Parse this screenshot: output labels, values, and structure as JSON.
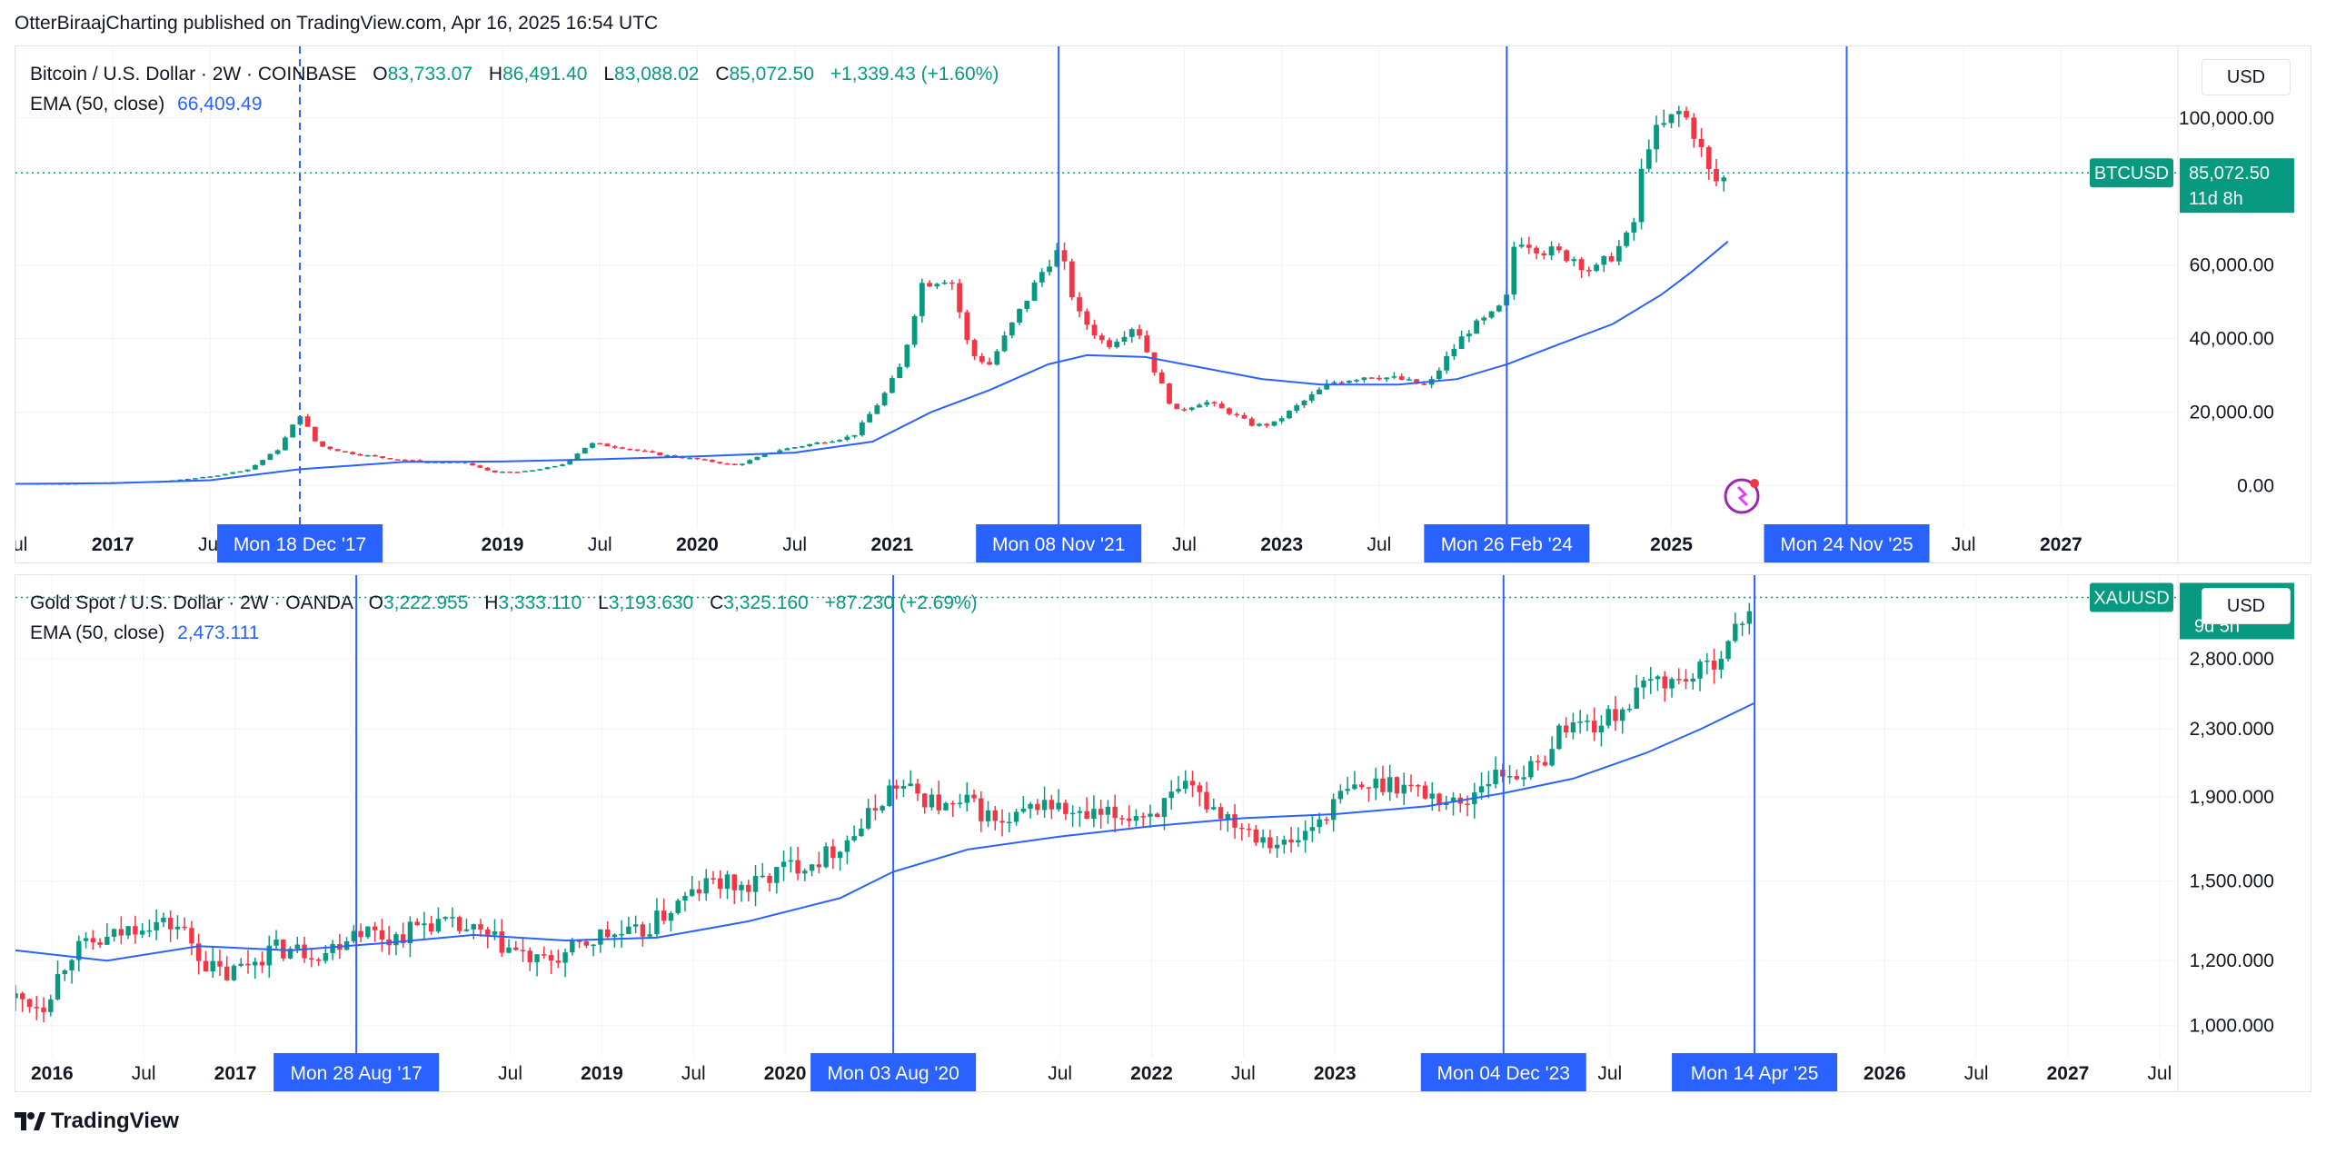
{
  "header": {
    "text": "OtterBiraajCharting published on TradingView.com, Apr 16, 2025 16:54 UTC"
  },
  "footer": {
    "brand": "TradingView"
  },
  "charts": {
    "btc": {
      "legend": {
        "symbol": "Bitcoin / U.S. Dollar · 2W · COINBASE",
        "o_key": "O",
        "o": "83,733.07",
        "h_key": "H",
        "h": "86,491.40",
        "l_key": "L",
        "l": "83,088.02",
        "c_key": "C",
        "c": "85,072.50",
        "change": "+1,339.43 (+1.60%)",
        "ema_label": "EMA (50, close)",
        "ema_value": "66,409.49"
      },
      "currency": "USD",
      "price_tag": "85,072.50",
      "countdown": "11d 8h",
      "ticker": "BTCUSD"
    },
    "gold": {
      "legend": {
        "symbol": "Gold Spot / U.S. Dollar · 2W · OANDA",
        "o_key": "O",
        "o": "3,222.955",
        "h_key": "H",
        "h": "3,333.110",
        "l_key": "L",
        "l": "3,193.630",
        "c_key": "C",
        "c": "3,325.160",
        "change": "+87.230 (+2.69%)",
        "ema_label": "EMA (50, close)",
        "ema_value": "2,473.111"
      },
      "currency": "USD",
      "countdown": "9d 5h",
      "ticker": "XAUUSD"
    }
  },
  "colors": {
    "up": "#089981",
    "down": "#f23645",
    "ema": "#2962ff",
    "marker": "#2962ff",
    "grid": "#f0f3fa",
    "badge": "#089981"
  },
  "chart_data": [
    {
      "type": "candlestick",
      "title": "Bitcoin / U.S. Dollar · 2W · COINBASE",
      "ylabel": "USD",
      "y_ticks": [
        "0.00",
        "20,000.00",
        "40,000.00",
        "60,000.00",
        "100,000.00"
      ],
      "y_tick_values": [
        0,
        20000,
        40000,
        60000,
        100000
      ],
      "ylim": [
        -9000,
        117000
      ],
      "x_ticks": [
        "Jul",
        "2017",
        "Jul",
        "2019",
        "Jul",
        "2020",
        "Jul",
        "2021",
        "Jul",
        "2023",
        "Jul",
        "2025",
        "Jul",
        "2027"
      ],
      "x_tick_dates": [
        2016.5,
        2017.0,
        2017.5,
        2019.0,
        2019.5,
        2020.0,
        2020.5,
        2021.0,
        2022.5,
        2023.0,
        2023.5,
        2025.0,
        2026.5,
        2027.0
      ],
      "xlim": [
        2016.5,
        2027.6
      ],
      "vertical_markers": [
        {
          "label": "Mon 18 Dec '17",
          "date": 2017.96,
          "style": "dashed"
        },
        {
          "label": "Mon 08 Nov '21",
          "date": 2021.855,
          "style": "solid"
        },
        {
          "label": "Mon 26 Feb '24",
          "date": 2024.155,
          "style": "solid"
        },
        {
          "label": "Mon 24 Nov '25",
          "date": 2025.9,
          "style": "solid"
        }
      ],
      "series": [
        {
          "name": "Bitcoin / U.S. Dollar",
          "points": [
            [
              2016.5,
              650
            ],
            [
              2016.75,
              620
            ],
            [
              2017.0,
              960
            ],
            [
              2017.25,
              1200
            ],
            [
              2017.5,
              2500
            ],
            [
              2017.7,
              4500
            ],
            [
              2017.85,
              10000
            ],
            [
              2017.96,
              19500
            ],
            [
              2018.05,
              11000
            ],
            [
              2018.2,
              9000
            ],
            [
              2018.4,
              7500
            ],
            [
              2018.6,
              6500
            ],
            [
              2018.8,
              6300
            ],
            [
              2018.95,
              3700
            ],
            [
              2019.1,
              3800
            ],
            [
              2019.3,
              5500
            ],
            [
              2019.45,
              11500
            ],
            [
              2019.6,
              10500
            ],
            [
              2019.8,
              8500
            ],
            [
              2020.0,
              7200
            ],
            [
              2020.2,
              5500
            ],
            [
              2020.4,
              9500
            ],
            [
              2020.6,
              11500
            ],
            [
              2020.8,
              13500
            ],
            [
              2020.95,
              24000
            ],
            [
              2021.05,
              33000
            ],
            [
              2021.15,
              55000
            ],
            [
              2021.3,
              57000
            ],
            [
              2021.4,
              36000
            ],
            [
              2021.5,
              33000
            ],
            [
              2021.65,
              47000
            ],
            [
              2021.8,
              61000
            ],
            [
              2021.86,
              64000
            ],
            [
              2021.95,
              47000
            ],
            [
              2022.1,
              38000
            ],
            [
              2022.25,
              44000
            ],
            [
              2022.35,
              31000
            ],
            [
              2022.45,
              20000
            ],
            [
              2022.6,
              23000
            ],
            [
              2022.75,
              19500
            ],
            [
              2022.85,
              16500
            ],
            [
              2022.95,
              16600
            ],
            [
              2023.1,
              22500
            ],
            [
              2023.25,
              28000
            ],
            [
              2023.45,
              30000
            ],
            [
              2023.6,
              29000
            ],
            [
              2023.75,
              27000
            ],
            [
              2023.85,
              35000
            ],
            [
              2023.95,
              42000
            ],
            [
              2024.1,
              47000
            ],
            [
              2024.155,
              51000
            ],
            [
              2024.2,
              68000
            ],
            [
              2024.35,
              64000
            ],
            [
              2024.5,
              62000
            ],
            [
              2024.6,
              58000
            ],
            [
              2024.7,
              63000
            ],
            [
              2024.8,
              69000
            ],
            [
              2024.87,
              93000
            ],
            [
              2024.95,
              97000
            ],
            [
              2025.05,
              102000
            ],
            [
              2025.12,
              96000
            ],
            [
              2025.2,
              84000
            ],
            [
              2025.25,
              82000
            ],
            [
              2025.29,
              85072.5
            ]
          ]
        },
        {
          "name": "EMA (50, close)",
          "points": [
            [
              2016.5,
              500
            ],
            [
              2017.0,
              700
            ],
            [
              2017.5,
              1500
            ],
            [
              2017.96,
              4500
            ],
            [
              2018.5,
              6500
            ],
            [
              2019.0,
              6600
            ],
            [
              2019.5,
              7200
            ],
            [
              2020.0,
              8000
            ],
            [
              2020.5,
              9000
            ],
            [
              2020.9,
              12000
            ],
            [
              2021.2,
              20000
            ],
            [
              2021.5,
              26000
            ],
            [
              2021.8,
              33000
            ],
            [
              2022.0,
              35500
            ],
            [
              2022.3,
              35000
            ],
            [
              2022.6,
              32000
            ],
            [
              2022.9,
              29000
            ],
            [
              2023.2,
              27500
            ],
            [
              2023.6,
              27500
            ],
            [
              2023.9,
              29000
            ],
            [
              2024.155,
              33000
            ],
            [
              2024.4,
              38000
            ],
            [
              2024.7,
              44000
            ],
            [
              2024.95,
              52000
            ],
            [
              2025.1,
              58000
            ],
            [
              2025.29,
              66409.49
            ]
          ]
        }
      ]
    },
    {
      "type": "candlestick",
      "title": "Gold Spot / U.S. Dollar · 2W · OANDA",
      "ylabel": "USD",
      "y_scale": "log",
      "y_ticks": [
        "1,000.000",
        "1,200.000",
        "1,500.000",
        "1,900.000",
        "2,300.000",
        "2,800.000"
      ],
      "y_tick_values": [
        1000,
        1200,
        1500,
        1900,
        2300,
        2800
      ],
      "ylim": [
        940,
        3450
      ],
      "x_ticks": [
        "2016",
        "Jul",
        "2017",
        "Jul",
        "2019",
        "Jul",
        "2020",
        "Jul",
        "2022",
        "Jul",
        "2023",
        "Jul",
        "2026",
        "Jul",
        "2027",
        "Jul"
      ],
      "x_tick_dates": [
        2016.0,
        2016.5,
        2017.0,
        2018.5,
        2019.0,
        2019.5,
        2020.0,
        2021.5,
        2022.0,
        2022.5,
        2023.0,
        2024.5,
        2026.0,
        2026.5,
        2027.0,
        2027.5
      ],
      "xlim": [
        2015.8,
        2027.6
      ],
      "vertical_markers": [
        {
          "label": "Mon 28 Aug '17",
          "date": 2017.66,
          "style": "solid"
        },
        {
          "label": "Mon 03 Aug '20",
          "date": 2020.59,
          "style": "solid"
        },
        {
          "label": "Mon 04 Dec '23",
          "date": 2023.92,
          "style": "solid"
        },
        {
          "label": "Mon 14 Apr '25",
          "date": 2025.29,
          "style": "solid"
        }
      ],
      "series": [
        {
          "name": "Gold Spot / U.S. Dollar",
          "points": [
            [
              2015.8,
              1080
            ],
            [
              2015.95,
              1060
            ],
            [
              2016.1,
              1230
            ],
            [
              2016.3,
              1270
            ],
            [
              2016.5,
              1340
            ],
            [
              2016.7,
              1320
            ],
            [
              2016.85,
              1180
            ],
            [
              2016.95,
              1150
            ],
            [
              2017.2,
              1240
            ],
            [
              2017.5,
              1230
            ],
            [
              2017.66,
              1320
            ],
            [
              2017.85,
              1275
            ],
            [
              2018.05,
              1340
            ],
            [
              2018.3,
              1300
            ],
            [
              2018.5,
              1240
            ],
            [
              2018.65,
              1190
            ],
            [
              2018.8,
              1220
            ],
            [
              2019.0,
              1290
            ],
            [
              2019.2,
              1290
            ],
            [
              2019.4,
              1400
            ],
            [
              2019.6,
              1500
            ],
            [
              2019.8,
              1470
            ],
            [
              2020.0,
              1560
            ],
            [
              2020.2,
              1600
            ],
            [
              2020.4,
              1730
            ],
            [
              2020.59,
              1970
            ],
            [
              2020.75,
              1900
            ],
            [
              2020.9,
              1830
            ],
            [
              2021.0,
              1870
            ],
            [
              2021.2,
              1740
            ],
            [
              2021.4,
              1880
            ],
            [
              2021.6,
              1790
            ],
            [
              2021.8,
              1800
            ],
            [
              2022.0,
              1820
            ],
            [
              2022.2,
              1940
            ],
            [
              2022.35,
              1840
            ],
            [
              2022.55,
              1730
            ],
            [
              2022.75,
              1650
            ],
            [
              2022.9,
              1770
            ],
            [
              2023.05,
              1920
            ],
            [
              2023.3,
              1990
            ],
            [
              2023.5,
              1920
            ],
            [
              2023.7,
              1850
            ],
            [
              2023.8,
              1990
            ],
            [
              2023.92,
              2030
            ],
            [
              2024.1,
              2050
            ],
            [
              2024.25,
              2330
            ],
            [
              2024.45,
              2330
            ],
            [
              2024.6,
              2470
            ],
            [
              2024.75,
              2650
            ],
            [
              2024.85,
              2620
            ],
            [
              2025.0,
              2700
            ],
            [
              2025.15,
              2920
            ],
            [
              2025.29,
              3325.16
            ]
          ]
        },
        {
          "name": "EMA (50, close)",
          "points": [
            [
              2015.8,
              1235
            ],
            [
              2016.3,
              1200
            ],
            [
              2016.8,
              1250
            ],
            [
              2017.3,
              1235
            ],
            [
              2017.8,
              1260
            ],
            [
              2018.3,
              1290
            ],
            [
              2018.8,
              1270
            ],
            [
              2019.3,
              1280
            ],
            [
              2019.8,
              1340
            ],
            [
              2020.3,
              1430
            ],
            [
              2020.59,
              1540
            ],
            [
              2021.0,
              1640
            ],
            [
              2021.5,
              1700
            ],
            [
              2022.0,
              1750
            ],
            [
              2022.5,
              1790
            ],
            [
              2023.0,
              1810
            ],
            [
              2023.5,
              1850
            ],
            [
              2023.92,
              1920
            ],
            [
              2024.3,
              2000
            ],
            [
              2024.7,
              2150
            ],
            [
              2025.0,
              2300
            ],
            [
              2025.29,
              2473.111
            ]
          ]
        }
      ]
    }
  ]
}
